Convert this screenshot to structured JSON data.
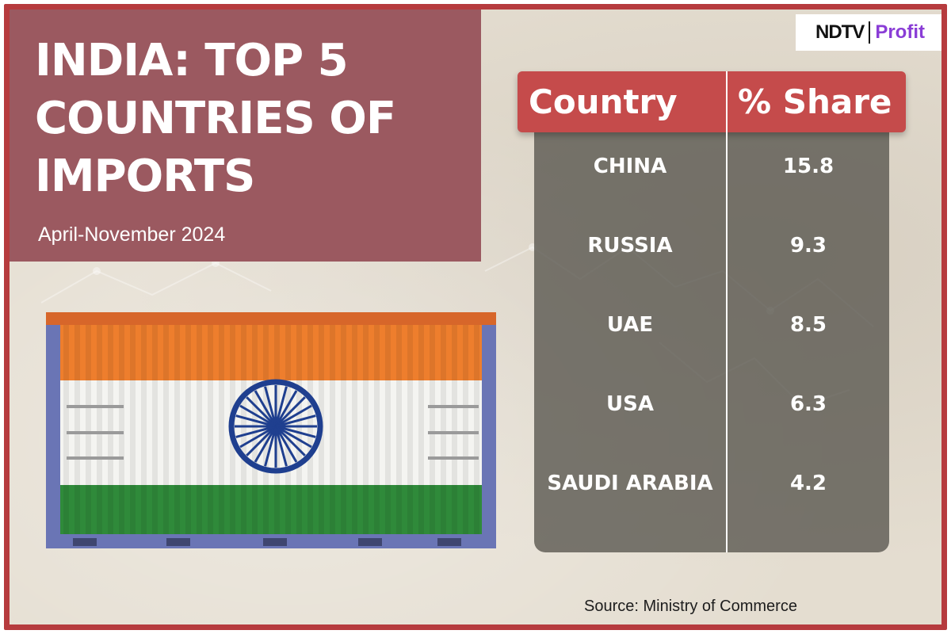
{
  "title": "INDIA: TOP 5 COUNTRIES OF IMPORTS",
  "subtitle": "April-November 2024",
  "logo": {
    "ndtv": "NDTV",
    "profit": "Profit"
  },
  "source": "Source: Ministry of Commerce",
  "colors": {
    "frame": "#b63b3e",
    "title_panel": "#9b5960",
    "header": "#c54b4b",
    "saffron": "#ee7e2d",
    "white": "#f4f4f1",
    "green": "#2f8a3a",
    "chakra": "#1f3f8f",
    "container_frame": "#6a75b5"
  },
  "chart_data": {
    "type": "table",
    "columns": [
      "Country",
      "% Share"
    ],
    "rows": [
      {
        "country": "CHINA",
        "share": "15.8"
      },
      {
        "country": "RUSSIA",
        "share": "9.3"
      },
      {
        "country": "UAE",
        "share": "8.5"
      },
      {
        "country": "USA",
        "share": "6.3"
      },
      {
        "country": "SAUDI ARABIA",
        "share": "4.2"
      }
    ]
  }
}
